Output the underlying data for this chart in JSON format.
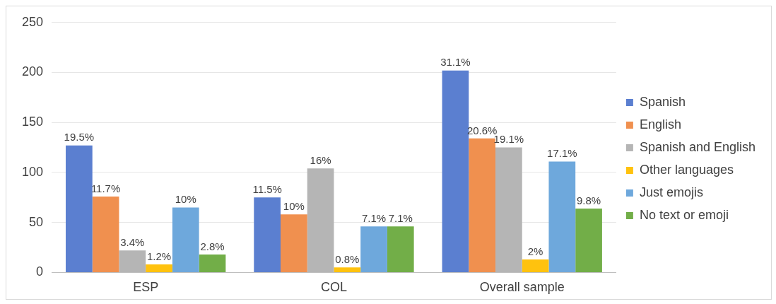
{
  "chart_data": {
    "type": "bar",
    "categories": [
      "ESP",
      "COL",
      "Overall sample"
    ],
    "series": [
      {
        "name": "Spanish",
        "color": "#5b7fd0",
        "values": [
          127,
          75,
          202
        ]
      },
      {
        "name": "English",
        "color": "#f0904f",
        "values": [
          76,
          58,
          134
        ]
      },
      {
        "name": "Spanish and English",
        "color": "#b5b5b5",
        "values": [
          22,
          104,
          125
        ]
      },
      {
        "name": "Other languages",
        "color": "#ffc20e",
        "values": [
          8,
          5,
          13
        ]
      },
      {
        "name": "Just emojis",
        "color": "#6ea8dc",
        "values": [
          65,
          46,
          111
        ]
      },
      {
        "name": "No text or emoji",
        "color": "#72ae48",
        "values": [
          18,
          46,
          64
        ]
      }
    ],
    "annotations": [
      "19.5%",
      "11.7%",
      "3.4%",
      "1.2%",
      "10%",
      "2.8%",
      "11.5%",
      "10%",
      "16%",
      "0.8%",
      "7.1%",
      "7.1%",
      "31.1%",
      "20.6%",
      "19.1%",
      "2%",
      "17.1%",
      "9.8%"
    ],
    "ylim": [
      0,
      250
    ],
    "yticks": [
      0,
      50,
      100,
      150,
      200,
      250
    ],
    "grid": "y",
    "legend": "right"
  }
}
